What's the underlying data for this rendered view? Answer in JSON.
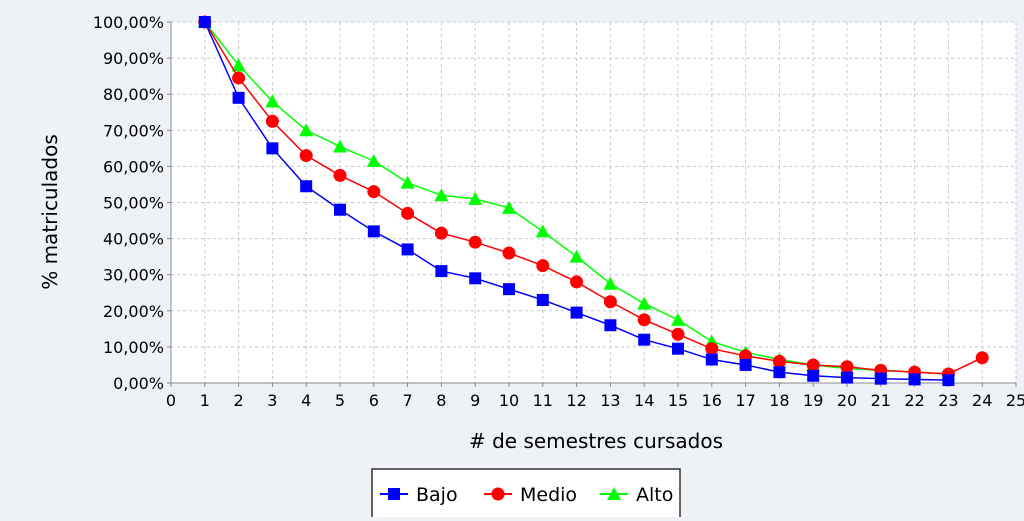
{
  "chart_data": {
    "type": "line",
    "title": "",
    "xlabel": "# de semestres cursados",
    "ylabel": "% matriculados",
    "xlim": [
      0,
      25
    ],
    "ylim": [
      0,
      100
    ],
    "x_ticks": [
      "0",
      "1",
      "2",
      "3",
      "4",
      "5",
      "6",
      "7",
      "8",
      "9",
      "10",
      "11",
      "12",
      "13",
      "14",
      "15",
      "16",
      "17",
      "18",
      "19",
      "20",
      "21",
      "22",
      "23",
      "24",
      "25"
    ],
    "y_ticks": [
      "0,00%",
      "10,00%",
      "20,00%",
      "30,00%",
      "40,00%",
      "50,00%",
      "60,00%",
      "70,00%",
      "80,00%",
      "90,00%",
      "100,00%"
    ],
    "grid": true,
    "legend_position": "bottom",
    "series": [
      {
        "name": "Bajo",
        "color": "#0000ff",
        "marker": "square",
        "x": [
          1,
          2,
          3,
          4,
          5,
          6,
          7,
          8,
          9,
          10,
          11,
          12,
          13,
          14,
          15,
          16,
          17,
          18,
          19,
          20,
          21,
          22,
          23
        ],
        "y": [
          100,
          79,
          65,
          54.5,
          48,
          42,
          37,
          31,
          29,
          26,
          23,
          19.5,
          16,
          12,
          9.5,
          6.5,
          5,
          3,
          2,
          1.5,
          1.2,
          1,
          0.8
        ]
      },
      {
        "name": "Medio",
        "color": "#ff0000",
        "marker": "circle",
        "x": [
          1,
          2,
          3,
          4,
          5,
          6,
          7,
          8,
          9,
          10,
          11,
          12,
          13,
          14,
          15,
          16,
          17,
          18,
          19,
          20,
          21,
          22,
          23,
          24
        ],
        "y": [
          100,
          84.5,
          72.5,
          63,
          57.5,
          53,
          47,
          41.5,
          39,
          36,
          32.5,
          28,
          22.5,
          17.5,
          13.5,
          9.5,
          7.5,
          6,
          5,
          4.5,
          3.5,
          3,
          2.5,
          7
        ]
      },
      {
        "name": "Alto",
        "color": "#00ff00",
        "marker": "triangle",
        "x": [
          1,
          2,
          3,
          4,
          5,
          6,
          7,
          8,
          9,
          10,
          11,
          12,
          13,
          14,
          15,
          16,
          17,
          18,
          19,
          20,
          21,
          22,
          23
        ],
        "y": [
          100,
          88,
          78,
          70,
          65.5,
          61.5,
          55.5,
          52,
          51,
          48.5,
          42,
          35,
          27.5,
          22,
          17.5,
          11.5,
          8.5,
          6.5,
          5,
          4,
          3.5,
          3,
          2.5
        ]
      }
    ]
  }
}
